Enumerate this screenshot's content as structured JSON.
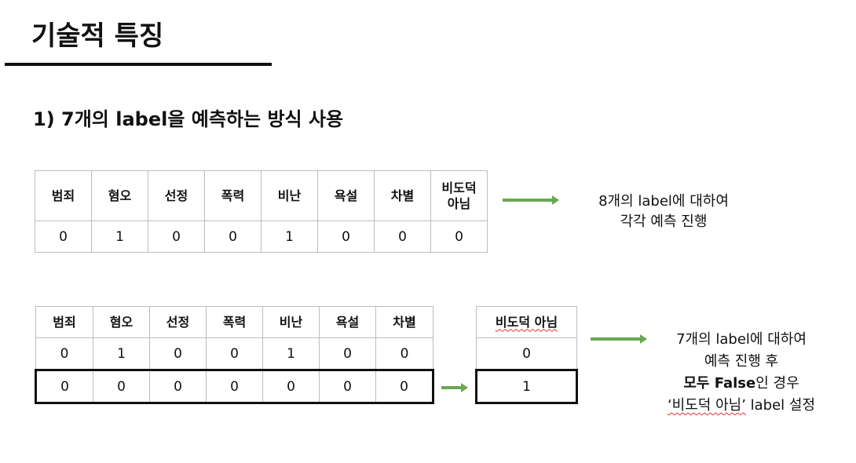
{
  "title": "기술적 특징",
  "subtitle": "1) 7개의 label을 예측하는 방식 사용",
  "table1": {
    "headers": [
      "범죄",
      "혐오",
      "선정",
      "폭력",
      "비난",
      "욕설",
      "차별",
      "비도덕\n아님"
    ],
    "values": [
      "0",
      "1",
      "0",
      "0",
      "1",
      "0",
      "0",
      "0"
    ]
  },
  "table2": {
    "headers": [
      "범죄",
      "혐오",
      "선정",
      "폭력",
      "비난",
      "욕설",
      "차별"
    ],
    "row1": [
      "0",
      "1",
      "0",
      "0",
      "1",
      "0",
      "0"
    ],
    "row2": [
      "0",
      "0",
      "0",
      "0",
      "0",
      "0",
      "0"
    ]
  },
  "table3": {
    "header": "비도덕 아님",
    "row1": "0",
    "row2": "1"
  },
  "note1": {
    "line1": "8개의 label에 대하여",
    "line2": "각각 예측 진행"
  },
  "note2": {
    "line1": "7개의 label에 대하여",
    "line2": "예측 진행 후",
    "line3_bold": "모두 False",
    "line3_rest": "인 경우",
    "line4_quoted": "‘비도덕 아님’",
    "line4_rest": " label 설정"
  },
  "colors": {
    "arrow": "#6aa84f",
    "text": "#111111",
    "border": "#bdbdbd"
  }
}
